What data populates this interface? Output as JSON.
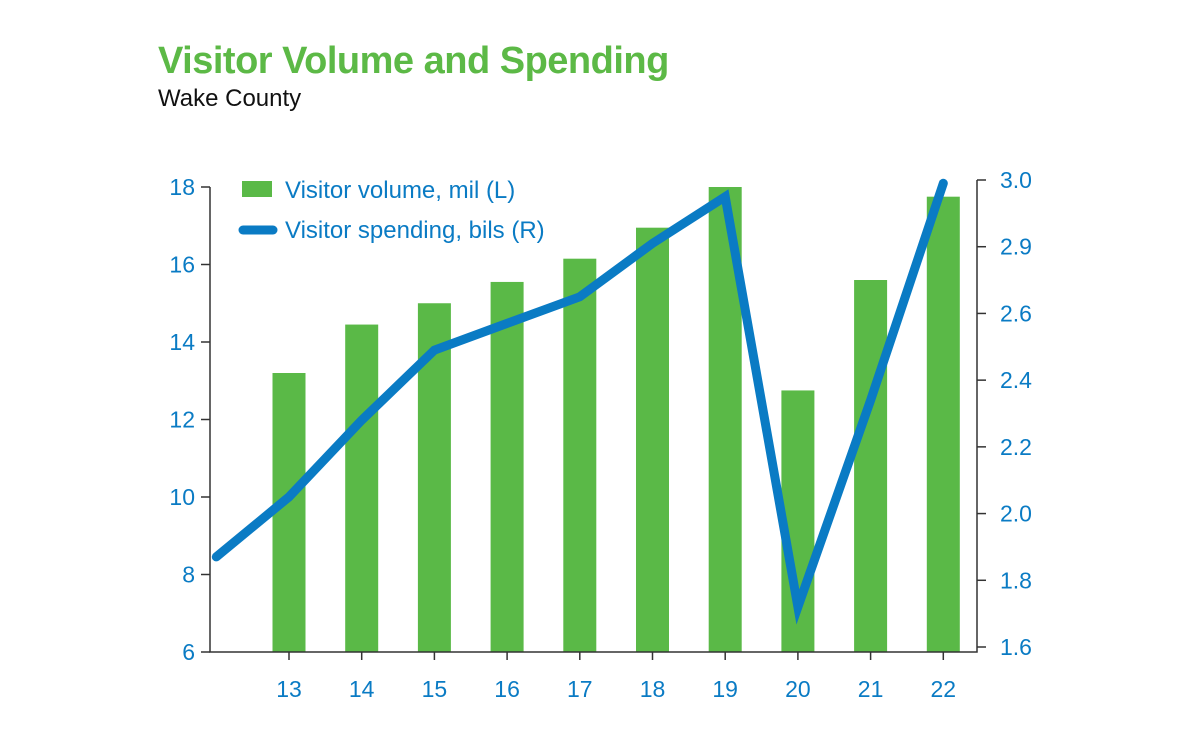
{
  "chart_data": {
    "type": "bar+line",
    "title": "Visitor Volume and Spending",
    "subtitle": "Wake County",
    "categories": [
      "13",
      "14",
      "15",
      "16",
      "17",
      "18",
      "19",
      "20",
      "21",
      "22"
    ],
    "series": [
      {
        "name": "Visitor volume, mil (L)",
        "type": "bar",
        "axis": "left",
        "color": "#5ab947",
        "x": [
          13,
          14,
          15,
          16,
          17,
          18,
          19,
          20,
          21,
          22
        ],
        "values": [
          13.2,
          14.45,
          15.0,
          15.55,
          16.15,
          16.95,
          18.0,
          12.75,
          15.6,
          17.75
        ]
      },
      {
        "name": "Visitor spending, bils (R)",
        "type": "line",
        "axis": "right",
        "color": "#0a7bc4",
        "x": [
          12,
          13,
          14,
          15,
          16,
          17,
          18,
          19,
          20,
          21,
          22
        ],
        "values": [
          1.87,
          2.05,
          2.28,
          2.49,
          2.57,
          2.65,
          2.81,
          2.95,
          1.72,
          2.34,
          2.99
        ]
      }
    ],
    "left_axis": {
      "ylim": [
        6,
        18
      ],
      "ticks": [
        "6",
        "8",
        "10",
        "12",
        "14",
        "16",
        "18"
      ]
    },
    "right_axis": {
      "ylim": [
        1.6,
        3.0
      ],
      "ticks": [
        "1.6",
        "1.8",
        "2.0",
        "2.2",
        "2.4",
        "2.6",
        "2.9",
        "3.0"
      ]
    },
    "xlim": [
      12,
      22.4
    ],
    "grid": false,
    "legend_position": "top-left"
  }
}
